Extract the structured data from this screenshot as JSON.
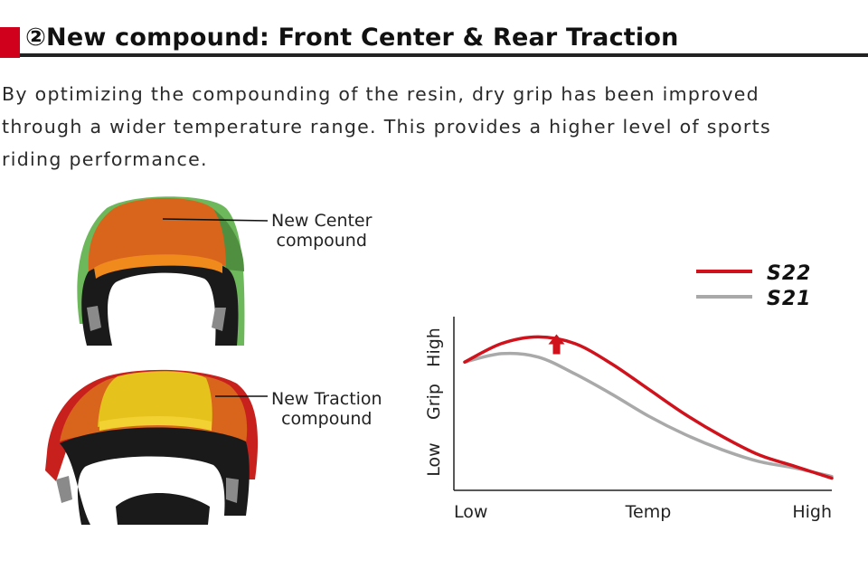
{
  "heading": {
    "marker_color": "#d0001c",
    "title": "②New compound: Front Center & Rear Traction"
  },
  "intro": {
    "lines": [
      "By optimizing the compounding of the resin, dry grip has been improved",
      "through a wider temperature range. This provides a higher level of sports",
      "riding performance."
    ]
  },
  "tyres": {
    "front": {
      "callout_line1": "New Center",
      "callout_line2": "compound",
      "colors": {
        "center": "#d9641c",
        "shoulder": "#6db85a",
        "carcass": "#1a1a1a"
      }
    },
    "rear": {
      "callout_line1": "New Traction",
      "callout_line2": "compound",
      "colors": {
        "center": "#e6c21c",
        "mid": "#d9641c",
        "edge": "#c8201c",
        "carcass": "#1a1a1a"
      }
    }
  },
  "chart_data": {
    "type": "line",
    "title": "",
    "xlabel": "Temp",
    "ylabel": "Grip",
    "x_ticks": [
      "Low",
      "High"
    ],
    "y_ticks": [
      "Low",
      "High"
    ],
    "x": [
      0,
      0.1,
      0.2,
      0.3,
      0.4,
      0.5,
      0.6,
      0.7,
      0.8,
      0.9,
      1.0
    ],
    "xlim": [
      0,
      1
    ],
    "ylim": [
      0,
      1
    ],
    "series": [
      {
        "name": "S22",
        "color": "#d0121c",
        "values": [
          0.73,
          0.84,
          0.88,
          0.84,
          0.72,
          0.57,
          0.42,
          0.29,
          0.18,
          0.11,
          0.04
        ]
      },
      {
        "name": "S21",
        "color": "#a9a9a9",
        "values": [
          0.73,
          0.78,
          0.76,
          0.66,
          0.54,
          0.41,
          0.3,
          0.21,
          0.14,
          0.1,
          0.05
        ]
      }
    ],
    "annotation": "up-arrow",
    "legend_position": "top-right",
    "grid": false
  }
}
